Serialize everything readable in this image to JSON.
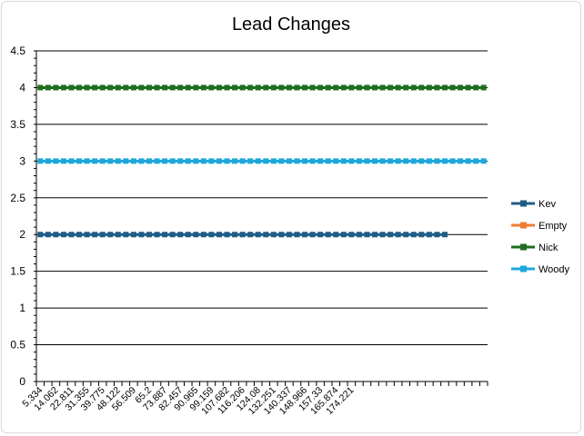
{
  "chart_data": {
    "type": "line",
    "title": "Lead Changes",
    "xlabel": "",
    "ylabel": "",
    "ylim": [
      0,
      4.5
    ],
    "y_ticks": [
      "0",
      "0.5",
      "1",
      "1.5",
      "2",
      "2.5",
      "3",
      "3.5",
      "4",
      "4.5"
    ],
    "x_tick_labels": [
      "5.334",
      "14.062",
      "22.811",
      "31.355",
      "39.775",
      "48.122",
      "56.509",
      "65.2",
      "73.887",
      "82.457",
      "90.965",
      "99.159",
      "107.682",
      "116.206",
      "124.08",
      "132.251",
      "140.337",
      "148.966",
      "157.33",
      "165.874",
      "174.221"
    ],
    "category_count": 58,
    "grid": true,
    "legend": "right",
    "series": [
      {
        "name": "Kev",
        "color": "#1f5c85",
        "value": 2,
        "points": 53
      },
      {
        "name": "Empty",
        "color": "#ed7d31",
        "value": null,
        "points": 0
      },
      {
        "name": "Nick",
        "color": "#1e6e1e",
        "value": 4,
        "points": 58
      },
      {
        "name": "Woody",
        "color": "#1ea7dc",
        "value": 3,
        "points": 58
      }
    ]
  }
}
